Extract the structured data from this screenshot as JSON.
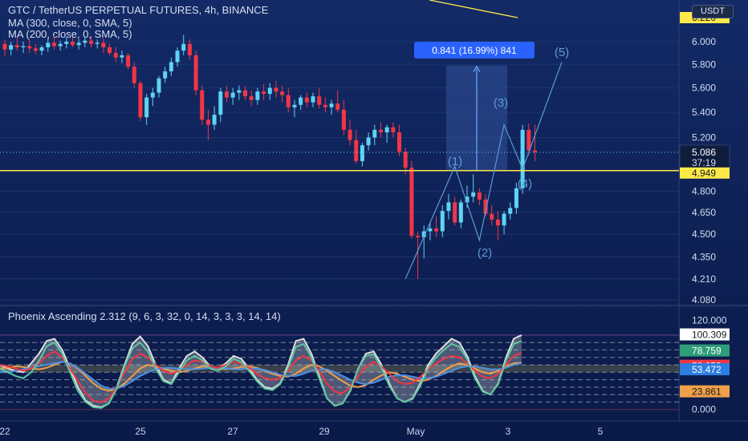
{
  "header": {
    "title": "GTC / TetherUS PERPETUAL FUTURES, 4h, BINANCE",
    "ma1": "MA (300, close, 0, SMA, 5)",
    "ma2": "MA (200, close, 0, SMA, 5)"
  },
  "currency_badge": "USDT",
  "measure_label": "0.841 (16.99%) 841",
  "indicator_title": "Phoenix Ascending 2.312 (9, 6, 3, 32, 0, 14, 3, 3, 3, 14, 14)",
  "colors": {
    "up": "#5fd3f3",
    "down": "#f23645",
    "price_line": "#ffe94a",
    "wave": "#5b9bd5"
  },
  "chart_data": [
    {
      "type": "candlestick",
      "title": "GTC / TetherUS PERPETUAL FUTURES, 4h, BINANCE",
      "y_ticks": [
        "6.220",
        "6.000",
        "5.800",
        "5.600",
        "5.400",
        "5.200",
        "4.949",
        "4.800",
        "4.650",
        "4.500",
        "4.350",
        "4.210",
        "4.080"
      ],
      "y_scale": "log",
      "ylim": [
        4.08,
        6.3
      ],
      "x_ticks": [
        "22",
        "25",
        "27",
        "29",
        "May",
        "3",
        "5"
      ],
      "candles": [
        {
          "o": 5.98,
          "h": 6.02,
          "l": 5.87,
          "c": 5.93
        },
        {
          "o": 5.93,
          "h": 6.0,
          "l": 5.88,
          "c": 5.97
        },
        {
          "o": 5.97,
          "h": 6.03,
          "l": 5.92,
          "c": 5.95
        },
        {
          "o": 5.95,
          "h": 6.0,
          "l": 5.9,
          "c": 5.96
        },
        {
          "o": 5.96,
          "h": 6.02,
          "l": 5.9,
          "c": 5.94
        },
        {
          "o": 5.94,
          "h": 5.98,
          "l": 5.89,
          "c": 5.92
        },
        {
          "o": 5.92,
          "h": 5.97,
          "l": 5.88,
          "c": 5.95
        },
        {
          "o": 5.95,
          "h": 6.03,
          "l": 5.91,
          "c": 5.99
        },
        {
          "o": 5.99,
          "h": 6.05,
          "l": 5.93,
          "c": 5.96
        },
        {
          "o": 5.96,
          "h": 6.01,
          "l": 5.92,
          "c": 5.98
        },
        {
          "o": 5.98,
          "h": 6.04,
          "l": 5.94,
          "c": 6.0
        },
        {
          "o": 6.0,
          "h": 6.04,
          "l": 5.95,
          "c": 5.97
        },
        {
          "o": 5.97,
          "h": 6.02,
          "l": 5.93,
          "c": 5.99
        },
        {
          "o": 5.99,
          "h": 6.04,
          "l": 5.95,
          "c": 6.01
        },
        {
          "o": 6.01,
          "h": 6.05,
          "l": 5.95,
          "c": 5.98
        },
        {
          "o": 5.98,
          "h": 6.02,
          "l": 5.94,
          "c": 5.99
        },
        {
          "o": 5.99,
          "h": 6.03,
          "l": 5.9,
          "c": 5.95
        },
        {
          "o": 5.95,
          "h": 5.98,
          "l": 5.88,
          "c": 5.9
        },
        {
          "o": 5.9,
          "h": 5.95,
          "l": 5.82,
          "c": 5.86
        },
        {
          "o": 5.86,
          "h": 5.92,
          "l": 5.81,
          "c": 5.88
        },
        {
          "o": 5.88,
          "h": 5.9,
          "l": 5.76,
          "c": 5.78
        },
        {
          "o": 5.78,
          "h": 5.82,
          "l": 5.6,
          "c": 5.64
        },
        {
          "o": 5.64,
          "h": 5.66,
          "l": 5.33,
          "c": 5.36
        },
        {
          "o": 5.36,
          "h": 5.55,
          "l": 5.3,
          "c": 5.52
        },
        {
          "o": 5.52,
          "h": 5.6,
          "l": 5.45,
          "c": 5.56
        },
        {
          "o": 5.56,
          "h": 5.7,
          "l": 5.52,
          "c": 5.68
        },
        {
          "o": 5.68,
          "h": 5.78,
          "l": 5.64,
          "c": 5.74
        },
        {
          "o": 5.74,
          "h": 5.86,
          "l": 5.7,
          "c": 5.82
        },
        {
          "o": 5.82,
          "h": 5.95,
          "l": 5.78,
          "c": 5.92
        },
        {
          "o": 5.92,
          "h": 6.06,
          "l": 5.88,
          "c": 5.98
        },
        {
          "o": 5.98,
          "h": 6.02,
          "l": 5.84,
          "c": 5.88
        },
        {
          "o": 5.88,
          "h": 5.92,
          "l": 5.54,
          "c": 5.58
        },
        {
          "o": 5.58,
          "h": 5.62,
          "l": 5.3,
          "c": 5.34
        },
        {
          "o": 5.34,
          "h": 5.42,
          "l": 5.18,
          "c": 5.3
        },
        {
          "o": 5.3,
          "h": 5.45,
          "l": 5.26,
          "c": 5.38
        },
        {
          "o": 5.38,
          "h": 5.6,
          "l": 5.32,
          "c": 5.57
        },
        {
          "o": 5.57,
          "h": 5.62,
          "l": 5.48,
          "c": 5.52
        },
        {
          "o": 5.52,
          "h": 5.6,
          "l": 5.46,
          "c": 5.56
        },
        {
          "o": 5.56,
          "h": 5.62,
          "l": 5.5,
          "c": 5.58
        },
        {
          "o": 5.58,
          "h": 5.62,
          "l": 5.5,
          "c": 5.53
        },
        {
          "o": 5.53,
          "h": 5.58,
          "l": 5.45,
          "c": 5.5
        },
        {
          "o": 5.5,
          "h": 5.6,
          "l": 5.46,
          "c": 5.57
        },
        {
          "o": 5.57,
          "h": 5.63,
          "l": 5.5,
          "c": 5.55
        },
        {
          "o": 5.55,
          "h": 5.64,
          "l": 5.5,
          "c": 5.6
        },
        {
          "o": 5.6,
          "h": 5.66,
          "l": 5.52,
          "c": 5.57
        },
        {
          "o": 5.57,
          "h": 5.62,
          "l": 5.48,
          "c": 5.54
        },
        {
          "o": 5.54,
          "h": 5.6,
          "l": 5.4,
          "c": 5.44
        },
        {
          "o": 5.44,
          "h": 5.5,
          "l": 5.36,
          "c": 5.46
        },
        {
          "o": 5.46,
          "h": 5.54,
          "l": 5.42,
          "c": 5.52
        },
        {
          "o": 5.52,
          "h": 5.56,
          "l": 5.44,
          "c": 5.48
        },
        {
          "o": 5.48,
          "h": 5.56,
          "l": 5.44,
          "c": 5.53
        },
        {
          "o": 5.53,
          "h": 5.6,
          "l": 5.43,
          "c": 5.46
        },
        {
          "o": 5.46,
          "h": 5.52,
          "l": 5.4,
          "c": 5.44
        },
        {
          "o": 5.44,
          "h": 5.5,
          "l": 5.38,
          "c": 5.47
        },
        {
          "o": 5.47,
          "h": 5.58,
          "l": 5.4,
          "c": 5.42
        },
        {
          "o": 5.42,
          "h": 5.5,
          "l": 5.22,
          "c": 5.26
        },
        {
          "o": 5.26,
          "h": 5.34,
          "l": 5.14,
          "c": 5.18
        },
        {
          "o": 5.18,
          "h": 5.26,
          "l": 5.0,
          "c": 5.02
        },
        {
          "o": 5.02,
          "h": 5.16,
          "l": 4.98,
          "c": 5.14
        },
        {
          "o": 5.14,
          "h": 5.24,
          "l": 5.1,
          "c": 5.2
        },
        {
          "o": 5.2,
          "h": 5.3,
          "l": 5.14,
          "c": 5.26
        },
        {
          "o": 5.26,
          "h": 5.32,
          "l": 5.2,
          "c": 5.24
        },
        {
          "o": 5.24,
          "h": 5.3,
          "l": 5.16,
          "c": 5.28
        },
        {
          "o": 5.28,
          "h": 5.32,
          "l": 5.2,
          "c": 5.24
        },
        {
          "o": 5.24,
          "h": 5.3,
          "l": 5.06,
          "c": 5.09
        },
        {
          "o": 5.09,
          "h": 5.12,
          "l": 4.92,
          "c": 4.97
        },
        {
          "o": 4.97,
          "h": 5.02,
          "l": 4.47,
          "c": 4.49
        },
        {
          "o": 4.49,
          "h": 4.52,
          "l": 4.21,
          "c": 4.48
        },
        {
          "o": 4.48,
          "h": 4.56,
          "l": 4.34,
          "c": 4.52
        },
        {
          "o": 4.52,
          "h": 4.58,
          "l": 4.46,
          "c": 4.54
        },
        {
          "o": 4.54,
          "h": 4.62,
          "l": 4.48,
          "c": 4.52
        },
        {
          "o": 4.52,
          "h": 4.7,
          "l": 4.48,
          "c": 4.66
        },
        {
          "o": 4.66,
          "h": 4.78,
          "l": 4.6,
          "c": 4.72
        },
        {
          "o": 4.72,
          "h": 4.76,
          "l": 4.56,
          "c": 4.58
        },
        {
          "o": 4.58,
          "h": 4.74,
          "l": 4.54,
          "c": 4.72
        },
        {
          "o": 4.72,
          "h": 4.84,
          "l": 4.68,
          "c": 4.76
        },
        {
          "o": 4.76,
          "h": 4.92,
          "l": 4.72,
          "c": 4.79
        },
        {
          "o": 4.79,
          "h": 4.82,
          "l": 4.7,
          "c": 4.74
        },
        {
          "o": 4.74,
          "h": 4.78,
          "l": 4.62,
          "c": 4.64
        },
        {
          "o": 4.64,
          "h": 4.7,
          "l": 4.56,
          "c": 4.6
        },
        {
          "o": 4.6,
          "h": 4.66,
          "l": 4.46,
          "c": 4.56
        },
        {
          "o": 4.56,
          "h": 4.66,
          "l": 4.5,
          "c": 4.64
        },
        {
          "o": 4.64,
          "h": 4.72,
          "l": 4.6,
          "c": 4.68
        },
        {
          "o": 4.68,
          "h": 4.86,
          "l": 4.64,
          "c": 4.82
        },
        {
          "o": 4.82,
          "h": 5.3,
          "l": 4.78,
          "c": 5.26
        },
        {
          "o": 5.26,
          "h": 5.31,
          "l": 5.06,
          "c": 5.1
        },
        {
          "o": 5.1,
          "h": 5.3,
          "l": 5.02,
          "c": 5.086
        }
      ],
      "current_price": 5.086,
      "countdown": "37:19",
      "horizontal_level": 4.949,
      "ma_price": 6.22,
      "wave_labels": [
        "(1)",
        "(2)",
        "(3)",
        "(4)",
        "(5)"
      ],
      "measurement": {
        "from": 4.949,
        "to": 5.79,
        "change": "0.841 (16.99%) 841"
      }
    },
    {
      "type": "line",
      "title": "Phoenix Ascending 2.312 (9, 6, 3, 32, 0, 14, 3, 3, 3, 14, 14)",
      "y_ticks": [
        "120.000",
        "100.309",
        "78.759",
        "58.259",
        "53.472",
        "23.861",
        "0.000"
      ],
      "ylim": [
        -10,
        130
      ],
      "levels": [
        100,
        90,
        80,
        70,
        60,
        50,
        40,
        30,
        20,
        10,
        0
      ],
      "series": [
        {
          "color": "#e0e0e0",
          "values": [
            60,
            55,
            52,
            50,
            62,
            75,
            92,
            95,
            80,
            55,
            30,
            12,
            5,
            3,
            8,
            30,
            60,
            88,
            98,
            85,
            60,
            40,
            35,
            55,
            72,
            78,
            70,
            58,
            55,
            62,
            72,
            68,
            55,
            40,
            30,
            28,
            35,
            60,
            92,
            95,
            75,
            45,
            15,
            5,
            8,
            25,
            55,
            75,
            78,
            60,
            35,
            15,
            10,
            15,
            35,
            60,
            75,
            85,
            95,
            90,
            72,
            45,
            25,
            20,
            35,
            70,
            95,
            100
          ]
        },
        {
          "color": "#f0a04a",
          "values": [
            55,
            56,
            58,
            57,
            55,
            54,
            56,
            60,
            64,
            62,
            55,
            45,
            35,
            28,
            25,
            28,
            35,
            45,
            55,
            60,
            58,
            55,
            52,
            50,
            52,
            55,
            58,
            57,
            55,
            54,
            55,
            57,
            58,
            56,
            52,
            48,
            45,
            44,
            48,
            55,
            60,
            58,
            52,
            45,
            38,
            32,
            30,
            33,
            40,
            46,
            50,
            48,
            44,
            40,
            38,
            40,
            45,
            52,
            58,
            62,
            60,
            55,
            50,
            48,
            52,
            58,
            62,
            63
          ]
        },
        {
          "color": "#4a90e2",
          "values": [
            50,
            50,
            52,
            54,
            56,
            58,
            60,
            62,
            64,
            62,
            56,
            48,
            40,
            32,
            28,
            28,
            32,
            38,
            45,
            50,
            54,
            56,
            56,
            55,
            54,
            54,
            55,
            56,
            56,
            55,
            54,
            54,
            55,
            55,
            53,
            50,
            47,
            45,
            45,
            48,
            52,
            54,
            54,
            50,
            45,
            40,
            36,
            34,
            36,
            40,
            44,
            46,
            46,
            44,
            42,
            42,
            44,
            48,
            52,
            56,
            58,
            58,
            56,
            54,
            54,
            56,
            60,
            62
          ]
        },
        {
          "color": "#f23645",
          "values": [
            60,
            58,
            55,
            52,
            55,
            62,
            72,
            78,
            70,
            55,
            38,
            22,
            12,
            10,
            15,
            30,
            50,
            68,
            75,
            70,
            60,
            52,
            48,
            52,
            60,
            66,
            64,
            58,
            56,
            60,
            64,
            62,
            56,
            48,
            42,
            40,
            42,
            52,
            66,
            72,
            66,
            52,
            35,
            24,
            22,
            30,
            45,
            58,
            64,
            58,
            48,
            38,
            34,
            36,
            44,
            54,
            62,
            68,
            72,
            70,
            62,
            52,
            44,
            42,
            48,
            60,
            72,
            76
          ]
        },
        {
          "color": "#5cc7a0",
          "values": [
            55,
            50,
            45,
            42,
            50,
            65,
            85,
            90,
            75,
            50,
            25,
            10,
            3,
            2,
            8,
            28,
            58,
            82,
            90,
            78,
            55,
            38,
            34,
            50,
            66,
            72,
            66,
            55,
            52,
            58,
            68,
            64,
            52,
            38,
            28,
            26,
            34,
            56,
            84,
            88,
            70,
            42,
            15,
            5,
            8,
            26,
            55,
            72,
            74,
            56,
            32,
            15,
            10,
            14,
            32,
            56,
            70,
            80,
            88,
            84,
            68,
            42,
            24,
            20,
            34,
            66,
            88,
            92
          ]
        }
      ]
    }
  ]
}
